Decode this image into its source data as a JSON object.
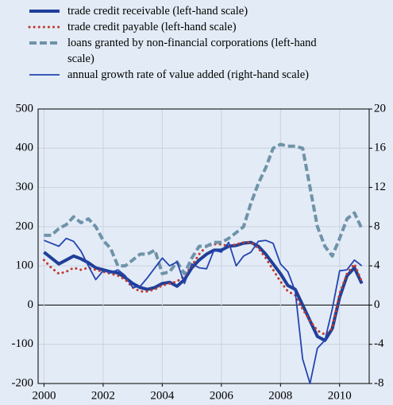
{
  "chart_data": {
    "type": "line",
    "x": [
      2000,
      2000.25,
      2000.5,
      2000.75,
      2001,
      2001.25,
      2001.5,
      2001.75,
      2002,
      2002.25,
      2002.5,
      2002.75,
      2003,
      2003.25,
      2003.5,
      2003.75,
      2004,
      2004.25,
      2004.5,
      2004.75,
      2005,
      2005.25,
      2005.5,
      2005.75,
      2006,
      2006.25,
      2006.5,
      2006.75,
      2007,
      2007.25,
      2007.5,
      2007.75,
      2008,
      2008.25,
      2008.5,
      2008.75,
      2009,
      2009.25,
      2009.5,
      2009.75,
      2010,
      2010.25,
      2010.5,
      2010.75
    ],
    "series": [
      {
        "name": "trade credit receivable (left-hand scale)",
        "color": "#1f3f99",
        "style": "thick",
        "values": [
          135,
          120,
          105,
          115,
          125,
          118,
          108,
          95,
          90,
          85,
          82,
          70,
          55,
          45,
          40,
          45,
          55,
          58,
          48,
          65,
          95,
          115,
          130,
          140,
          140,
          150,
          152,
          158,
          160,
          150,
          130,
          105,
          80,
          50,
          40,
          0,
          -40,
          -80,
          -90,
          -60,
          20,
          75,
          95,
          55
        ]
      },
      {
        "name": "trade credit payable (left-hand scale)",
        "color": "#c0392b",
        "style": "dotted",
        "values": [
          115,
          95,
          80,
          85,
          95,
          90,
          95,
          90,
          85,
          80,
          75,
          65,
          45,
          35,
          35,
          40,
          50,
          55,
          60,
          75,
          100,
          130,
          150,
          155,
          155,
          150,
          155,
          160,
          160,
          145,
          120,
          90,
          60,
          35,
          25,
          -10,
          -40,
          -65,
          -75,
          -60,
          30,
          80,
          105,
          60
        ]
      },
      {
        "name": "loans granted by non-financial corporations (left-hand scale)",
        "color": "#6f93a8",
        "style": "dashed",
        "values": [
          178,
          178,
          195,
          205,
          225,
          210,
          220,
          200,
          165,
          145,
          100,
          100,
          115,
          130,
          130,
          140,
          80,
          85,
          110,
          80,
          120,
          150,
          150,
          160,
          160,
          170,
          185,
          200,
          260,
          310,
          350,
          400,
          410,
          405,
          405,
          400,
          300,
          200,
          150,
          125,
          170,
          220,
          235,
          195
        ]
      },
      {
        "name": "annual growth rate of value added (right-hand scale)",
        "color": "#2345b0",
        "style": "thin",
        "axis": "y2",
        "values": [
          6.6,
          6.3,
          6.0,
          6.8,
          6.5,
          5.5,
          4.0,
          2.6,
          3.5,
          3.3,
          3.6,
          3.0,
          1.8,
          1.9,
          2.8,
          3.8,
          4.8,
          4.0,
          4.4,
          2.2,
          4.2,
          3.8,
          3.7,
          5.6,
          5.4,
          6.4,
          4.0,
          5.0,
          5.4,
          6.5,
          6.6,
          6.3,
          4.2,
          3.4,
          1.4,
          -5.5,
          -8.0,
          -4.4,
          -3.6,
          -0.4,
          3.5,
          3.6,
          4.6,
          4.0
        ]
      }
    ],
    "xlim": [
      1999.8,
      2011
    ],
    "xticks": [
      2000,
      2002,
      2004,
      2006,
      2008,
      2010
    ],
    "ylim": [
      -200,
      500
    ],
    "yticks": [
      -200,
      -100,
      0,
      100,
      200,
      300,
      400,
      500
    ],
    "y2lim": [
      -8,
      20
    ],
    "y2ticks": [
      -8,
      -4,
      0,
      4,
      8,
      12,
      16,
      20
    ],
    "grid": true
  }
}
